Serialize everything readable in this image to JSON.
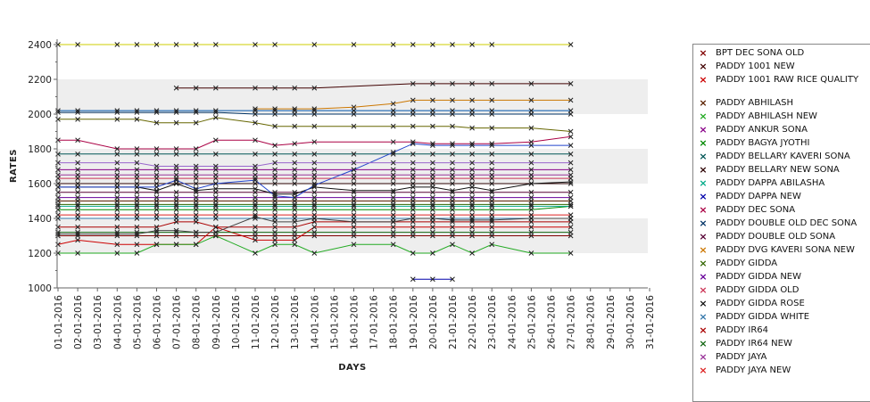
{
  "chart_data": {
    "type": "line",
    "xlabel": "DAYS",
    "ylabel": "RATES",
    "ylim": [
      1000,
      2400
    ],
    "y_ticks": [
      1000,
      1200,
      1400,
      1600,
      1800,
      2000,
      2200,
      2400
    ],
    "grid": "alternating horizontal bands",
    "legend_position": "right",
    "categories": [
      "01-01-2016",
      "02-01-2016",
      "03-01-2016",
      "04-01-2016",
      "05-01-2016",
      "06-01-2016",
      "07-01-2016",
      "08-01-2016",
      "09-01-2016",
      "10-01-2016",
      "11-01-2016",
      "12-01-2016",
      "13-01-2016",
      "14-01-2016",
      "15-01-2016",
      "16-01-2016",
      "17-01-2016",
      "18-01-2016",
      "19-01-2016",
      "20-01-2016",
      "21-01-2016",
      "22-01-2016",
      "23-01-2016",
      "24-01-2016",
      "25-01-2016",
      "26-01-2016",
      "27-01-2016",
      "28-01-2016",
      "29-01-2016",
      "30-01-2016",
      "31-01-2016"
    ],
    "series": [
      {
        "name": "BPT DEC SONA OLD",
        "color": "#800000",
        "values": [
          1300,
          1300,
          null,
          1300,
          1300,
          1300,
          1300,
          1300,
          1300,
          null,
          1300,
          1300,
          1300,
          1300,
          null,
          1300,
          null,
          1300,
          1300,
          1300,
          1300,
          1300,
          1300,
          null,
          1300,
          null,
          1300,
          null,
          null,
          null,
          null
        ]
      },
      {
        "name": "PADDY 1001 NEW",
        "color": "#400000",
        "values": [
          null,
          null,
          null,
          null,
          null,
          null,
          2150,
          2150,
          2150,
          null,
          2150,
          2150,
          2150,
          2150,
          null,
          null,
          null,
          null,
          2175,
          2175,
          2175,
          2175,
          2175,
          null,
          2175,
          null,
          2175,
          null,
          null,
          null,
          null
        ]
      },
      {
        "name": "PADDY 1001 RAW RICE QUALITY",
        "color": "#cc0000",
        "values": [
          1250,
          1275,
          null,
          1250,
          1250,
          1250,
          1250,
          1250,
          1350,
          null,
          1275,
          1275,
          1275,
          1350,
          null,
          1350,
          null,
          1350,
          1350,
          1350,
          1350,
          1350,
          1350,
          null,
          1350,
          null,
          1350,
          null,
          null,
          null,
          null
        ]
      },
      {
        "name": "PADDY ABHILASH",
        "color": "#5a2000",
        "values": [
          1500,
          1500,
          null,
          1500,
          1500,
          1500,
          1500,
          1500,
          1500,
          null,
          1500,
          1500,
          1500,
          1500,
          null,
          1500,
          null,
          1500,
          1500,
          1500,
          1500,
          1500,
          1500,
          null,
          1500,
          null,
          1500,
          null,
          null,
          null,
          null
        ]
      },
      {
        "name": "PADDY ABHILASH NEW",
        "color": "#22aa22",
        "values": [
          1200,
          1200,
          null,
          1200,
          1200,
          1250,
          1250,
          1250,
          1300,
          null,
          1200,
          1250,
          1250,
          1200,
          null,
          1250,
          null,
          1250,
          1200,
          1200,
          1250,
          1200,
          1250,
          null,
          1200,
          null,
          1200,
          null,
          null,
          null,
          null
        ]
      },
      {
        "name": "PADDY ANKUR SONA",
        "color": "#880088",
        "values": [
          1680,
          1680,
          null,
          1680,
          1680,
          1680,
          1680,
          1680,
          1680,
          null,
          1680,
          1680,
          1680,
          1680,
          null,
          1680,
          null,
          1680,
          1680,
          1680,
          1680,
          1680,
          1680,
          null,
          1680,
          null,
          1680,
          null,
          null,
          null,
          null
        ]
      },
      {
        "name": "PADDY BAGYA JYOTHI",
        "color": "#008800",
        "values": [
          1450,
          1450,
          null,
          1450,
          1450,
          1450,
          1450,
          1450,
          1450,
          null,
          1450,
          1450,
          1450,
          1450,
          null,
          1450,
          null,
          1450,
          1450,
          1450,
          1450,
          1450,
          1450,
          null,
          1450,
          null,
          1470,
          null,
          null,
          null,
          null
        ]
      },
      {
        "name": "PADDY BELLARY KAVERI SONA",
        "color": "#005555",
        "values": [
          1770,
          1770,
          null,
          1770,
          1770,
          1770,
          1770,
          1770,
          1770,
          null,
          1770,
          1770,
          1770,
          1770,
          null,
          1770,
          null,
          1770,
          1770,
          1770,
          1770,
          1770,
          1770,
          null,
          1770,
          null,
          1770,
          null,
          null,
          null,
          null
        ]
      },
      {
        "name": "PADDY BELLARY NEW SONA",
        "color": "#2b0000",
        "values": [
          1600,
          1600,
          null,
          1600,
          1600,
          1600,
          1600,
          1600,
          1600,
          null,
          1600,
          1600,
          1600,
          1600,
          null,
          1600,
          null,
          1600,
          1600,
          1600,
          1600,
          1600,
          1600,
          null,
          1600,
          null,
          1600,
          null,
          null,
          null,
          null
        ]
      },
      {
        "name": "PADDY DAPPA ABILASHA",
        "color": "#00aa88",
        "values": [
          1470,
          1470,
          null,
          1470,
          1470,
          1470,
          1470,
          1470,
          1470,
          null,
          1470,
          1470,
          1470,
          1470,
          null,
          1470,
          null,
          1470,
          1470,
          1470,
          1470,
          1470,
          1470,
          null,
          1470,
          null,
          1470,
          null,
          null,
          null,
          null
        ]
      },
      {
        "name": "PADDY DAPPA NEW",
        "color": "#0000aa",
        "values": [
          null,
          null,
          null,
          null,
          null,
          null,
          null,
          null,
          null,
          null,
          null,
          null,
          null,
          null,
          null,
          null,
          null,
          null,
          1050,
          1050,
          1050,
          null,
          null,
          null,
          null,
          null,
          null,
          null,
          null,
          null,
          null
        ]
      },
      {
        "name": "PADDY DEC SONA",
        "color": "#aa0044",
        "values": [
          1850,
          1850,
          null,
          1800,
          1800,
          1800,
          1800,
          1800,
          1850,
          null,
          1850,
          1820,
          1830,
          1840,
          null,
          null,
          null,
          1840,
          1840,
          1830,
          1830,
          1830,
          1830,
          null,
          1840,
          null,
          1870,
          null,
          null,
          null,
          null
        ]
      },
      {
        "name": "PADDY DOUBLE OLD DEC SONA",
        "color": "#003366",
        "values": [
          2010,
          2010,
          null,
          2010,
          2010,
          2010,
          2010,
          2010,
          2010,
          null,
          2000,
          2000,
          2000,
          2000,
          null,
          2000,
          null,
          2000,
          2000,
          2000,
          2000,
          2000,
          2000,
          null,
          2000,
          null,
          2000,
          null,
          null,
          null,
          null
        ]
      },
      {
        "name": "PADDY DOUBLE OLD SONA",
        "color": "#550033",
        "values": [
          1550,
          1550,
          null,
          1550,
          1550,
          1550,
          1550,
          1550,
          1550,
          null,
          1550,
          1550,
          1550,
          1550,
          null,
          1550,
          null,
          1550,
          1550,
          1550,
          1550,
          1550,
          1550,
          null,
          1550,
          null,
          1550,
          null,
          null,
          null,
          null
        ]
      },
      {
        "name": "PADDY DVG KAVERI SONA NEW",
        "color": "#cc7700",
        "values": [
          null,
          null,
          null,
          null,
          null,
          null,
          null,
          null,
          null,
          null,
          2030,
          2030,
          2030,
          2030,
          null,
          2040,
          null,
          2060,
          2080,
          2080,
          2080,
          2080,
          2080,
          null,
          2080,
          null,
          2080,
          null,
          null,
          null,
          null
        ]
      },
      {
        "name": "PADDY GIDDA",
        "color": "#336600",
        "values": [
          1480,
          1480,
          null,
          1480,
          1480,
          1480,
          1480,
          1480,
          1480,
          null,
          1480,
          1480,
          1480,
          1480,
          null,
          1480,
          null,
          1480,
          1480,
          1480,
          1480,
          1480,
          1480,
          null,
          1480,
          null,
          1480,
          null,
          null,
          null,
          null
        ]
      },
      {
        "name": "PADDY GIDDA NEW",
        "color": "#660099",
        "values": [
          1520,
          1520,
          null,
          1520,
          1520,
          1520,
          1520,
          1520,
          1520,
          null,
          1520,
          1520,
          1520,
          1520,
          null,
          1520,
          null,
          1520,
          1520,
          1520,
          1520,
          1520,
          1520,
          null,
          1520,
          null,
          1520,
          null,
          null,
          null,
          null
        ]
      },
      {
        "name": "PADDY GIDDA OLD",
        "color": "#cc3355",
        "values": [
          1630,
          1630,
          null,
          1630,
          1630,
          1630,
          1630,
          1630,
          1630,
          null,
          1630,
          1630,
          1630,
          1630,
          null,
          1630,
          null,
          1630,
          1630,
          1630,
          1630,
          1630,
          1630,
          null,
          1630,
          null,
          1630,
          null,
          null,
          null,
          null
        ]
      },
      {
        "name": "PADDY GIDDA ROSE",
        "color": "#111111",
        "values": [
          1580,
          1580,
          null,
          1580,
          1580,
          1560,
          1600,
          1560,
          1570,
          null,
          1570,
          1540,
          1540,
          1580,
          null,
          1560,
          null,
          1560,
          1580,
          1580,
          1560,
          1580,
          1560,
          null,
          1600,
          null,
          1610,
          null,
          null,
          null,
          null
        ]
      },
      {
        "name": "PADDY GIDDA WHITE",
        "color": "#3377aa",
        "values": [
          1400,
          1400,
          null,
          1400,
          1400,
          1400,
          1400,
          1400,
          1400,
          null,
          1400,
          1400,
          1400,
          1400,
          null,
          1400,
          null,
          1400,
          1400,
          1400,
          1400,
          1400,
          1400,
          null,
          1400,
          null,
          1400,
          null,
          null,
          null,
          null
        ]
      },
      {
        "name": "PADDY IR64",
        "color": "#aa0000",
        "values": [
          1350,
          1350,
          null,
          1350,
          1350,
          1350,
          1380,
          1380,
          1350,
          null,
          1350,
          1350,
          1350,
          1380,
          null,
          1380,
          null,
          1380,
          1380,
          1380,
          1380,
          1380,
          1380,
          null,
          1380,
          null,
          1380,
          null,
          null,
          null,
          null
        ]
      },
      {
        "name": "PADDY IR64 NEW",
        "color": "#116611",
        "values": [
          1320,
          1320,
          null,
          1320,
          1320,
          1320,
          1320,
          1320,
          1320,
          null,
          1320,
          1320,
          1320,
          1320,
          null,
          1320,
          null,
          1320,
          1320,
          1320,
          1320,
          1320,
          1320,
          null,
          1320,
          null,
          1320,
          null,
          null,
          null,
          null
        ]
      },
      {
        "name": "PADDY JAYA",
        "color": "#993399",
        "values": [
          1650,
          1650,
          null,
          1650,
          1650,
          1650,
          1650,
          1650,
          1650,
          null,
          1650,
          1650,
          1650,
          1650,
          null,
          1650,
          null,
          1650,
          1650,
          1650,
          1650,
          1650,
          1650,
          null,
          1650,
          null,
          1650,
          null,
          null,
          null,
          null
        ]
      },
      {
        "name": "PADDY JAYA NEW",
        "color": "#dd2222",
        "values": [
          1420,
          1420,
          null,
          1420,
          1420,
          1420,
          1420,
          1420,
          1420,
          null,
          1420,
          1420,
          1420,
          1420,
          null,
          1420,
          null,
          1420,
          1420,
          1420,
          1420,
          1420,
          1420,
          null,
          1420,
          null,
          1420,
          null,
          null,
          null,
          null
        ]
      },
      {
        "color": "#cccc00",
        "values": [
          2400,
          2400,
          null,
          2400,
          2400,
          2400,
          2400,
          2400,
          2400,
          null,
          2400,
          2400,
          null,
          2400,
          null,
          2400,
          null,
          2400,
          2400,
          2400,
          2400,
          2400,
          2400,
          null,
          null,
          null,
          2400,
          null,
          null,
          null,
          null
        ]
      },
      {
        "color": "#0055aa",
        "values": [
          2020,
          2020,
          null,
          2020,
          2020,
          2020,
          2020,
          2020,
          2020,
          null,
          2020,
          2020,
          2020,
          2020,
          null,
          2020,
          null,
          2020,
          2020,
          2020,
          2020,
          2020,
          2020,
          null,
          2020,
          null,
          2020,
          null,
          null,
          null,
          null
        ]
      },
      {
        "color": "#666600",
        "values": [
          1970,
          1970,
          null,
          1970,
          1970,
          1950,
          1950,
          1950,
          1980,
          null,
          1950,
          1930,
          1930,
          1930,
          null,
          1930,
          null,
          1930,
          1930,
          1930,
          1930,
          1920,
          1920,
          null,
          1920,
          null,
          1900,
          null,
          null,
          null,
          null
        ]
      },
      {
        "color": "#2244cc",
        "values": [
          1580,
          1580,
          null,
          1580,
          1580,
          1580,
          1620,
          1570,
          1600,
          null,
          1620,
          1530,
          1520,
          1590,
          null,
          1680,
          null,
          1780,
          1830,
          1820,
          1820,
          1820,
          1820,
          null,
          1820,
          null,
          1820,
          null,
          null,
          null,
          null
        ]
      },
      {
        "color": "#444444",
        "values": [
          1310,
          1310,
          null,
          1310,
          1310,
          1330,
          1330,
          1320,
          1320,
          null,
          1410,
          1380,
          1380,
          1400,
          null,
          1380,
          null,
          1380,
          1400,
          1400,
          1390,
          1390,
          1390,
          null,
          1400,
          null,
          1400,
          null,
          null,
          null,
          null
        ]
      },
      {
        "color": "#9966cc",
        "values": [
          1720,
          1720,
          null,
          1720,
          1720,
          1700,
          1700,
          1700,
          1700,
          null,
          1700,
          1720,
          1720,
          1720,
          null,
          1720,
          null,
          1720,
          1720,
          1720,
          1720,
          1720,
          1720,
          null,
          1720,
          null,
          1720,
          null,
          null,
          null,
          null
        ]
      }
    ]
  }
}
